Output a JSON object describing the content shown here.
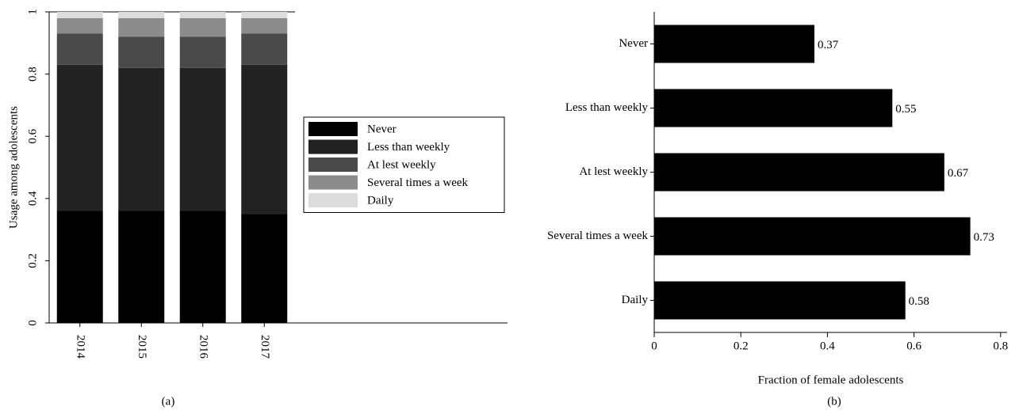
{
  "chart_data": [
    {
      "type": "bar",
      "stacked": true,
      "orientation": "vertical",
      "caption": "(a)",
      "ylabel": "Usage among adolescents",
      "categories": [
        "2014",
        "2015",
        "2016",
        "2017"
      ],
      "series": [
        {
          "name": "Never",
          "color": "#000000",
          "values": [
            0.36,
            0.36,
            0.36,
            0.35
          ]
        },
        {
          "name": "Less than weekly",
          "color": "#222222",
          "values": [
            0.47,
            0.46,
            0.46,
            0.48
          ]
        },
        {
          "name": "At lest weekly",
          "color": "#4a4a4a",
          "values": [
            0.1,
            0.1,
            0.1,
            0.1
          ]
        },
        {
          "name": "Several times a week",
          "color": "#8c8c8c",
          "values": [
            0.05,
            0.06,
            0.06,
            0.05
          ]
        },
        {
          "name": "Daily",
          "color": "#dcdcdc",
          "values": [
            0.02,
            0.02,
            0.02,
            0.02
          ]
        }
      ],
      "ylim": [
        0,
        1
      ],
      "yticks": [
        0,
        0.2,
        0.4,
        0.6,
        0.8,
        1
      ],
      "legend": "right"
    },
    {
      "type": "bar",
      "stacked": false,
      "orientation": "horizontal",
      "caption": "(b)",
      "xlabel": "Fraction of female adolescents",
      "categories": [
        "Never",
        "Less than weekly",
        "At lest weekly",
        "Several times a week",
        "Daily"
      ],
      "values": [
        0.37,
        0.55,
        0.67,
        0.73,
        0.58
      ],
      "color": "#000000",
      "xlim": [
        0,
        0.815
      ],
      "xticks": [
        0,
        0.2,
        0.4,
        0.6,
        0.8
      ]
    }
  ]
}
